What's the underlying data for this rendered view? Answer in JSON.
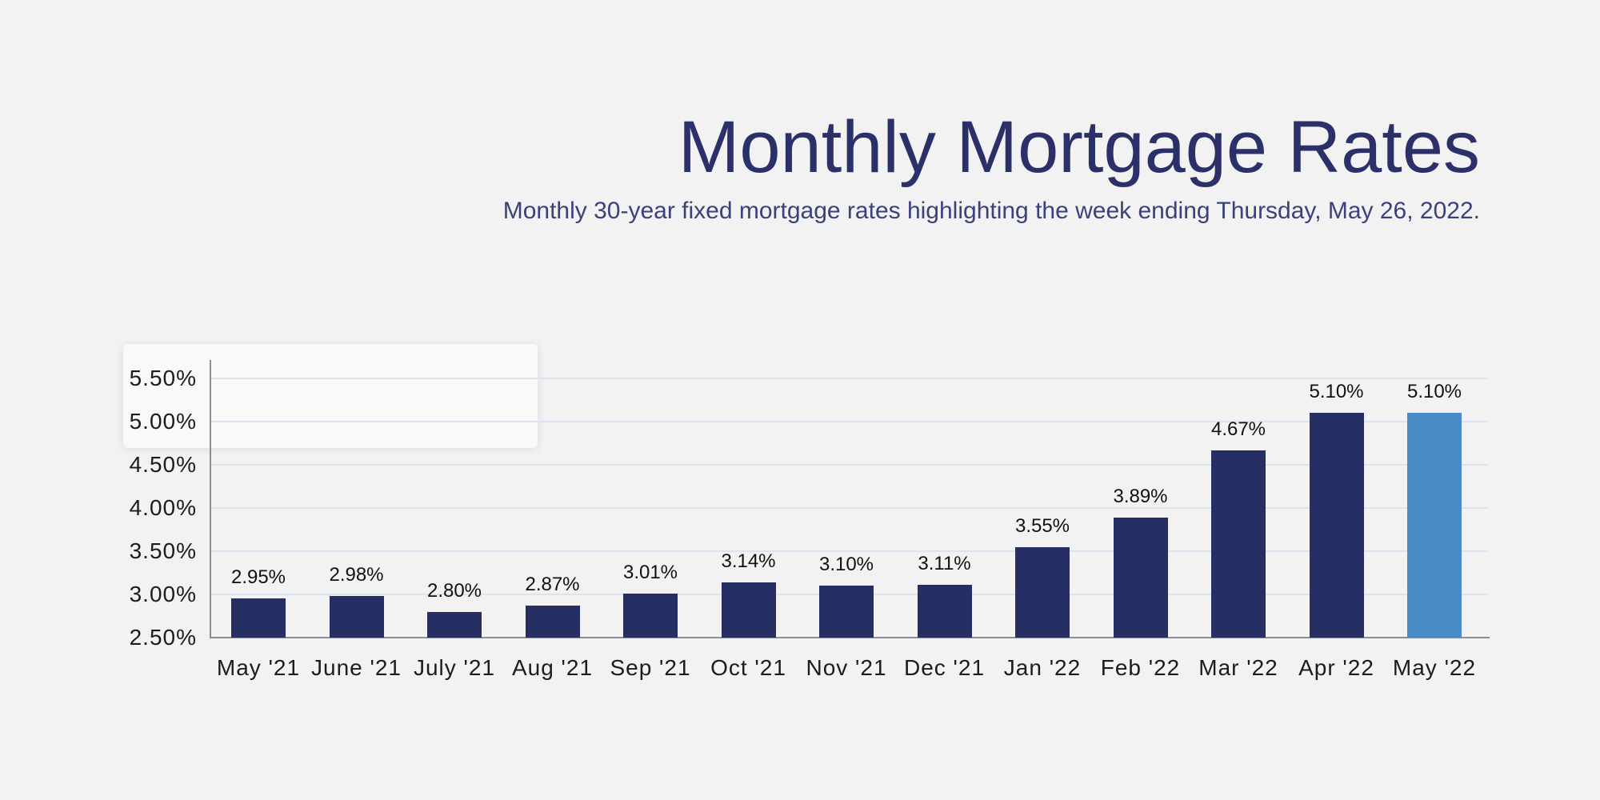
{
  "theme": {
    "background": "#f2f2f3",
    "title_color": "#2b3168",
    "subtitle_color": "#39427a"
  },
  "chart_data": {
    "type": "bar",
    "title": "Monthly Mortgage Rates",
    "subtitle": "Monthly 30-year fixed mortgage rates highlighting the week ending Thursday, May 26, 2022.",
    "xlabel": "",
    "ylabel": "",
    "categories": [
      "May '21",
      "June '21",
      "July '21",
      "Aug '21",
      "Sep '21",
      "Oct '21",
      "Nov '21",
      "Dec '21",
      "Jan '22",
      "Feb '22",
      "Mar '22",
      "Apr '22",
      "May '22"
    ],
    "values": [
      2.95,
      2.98,
      2.8,
      2.87,
      3.01,
      3.14,
      3.1,
      3.11,
      3.55,
      3.89,
      4.67,
      5.1,
      5.1
    ],
    "value_labels": [
      "2.95%",
      "2.98%",
      "2.80%",
      "2.87%",
      "3.01%",
      "3.14%",
      "3.10%",
      "3.11%",
      "3.55%",
      "3.89%",
      "4.67%",
      "5.10%",
      "5.10%"
    ],
    "yticks": [
      {
        "label": "5.50%",
        "value": 5.5
      },
      {
        "label": "5.00%",
        "value": 5.0
      },
      {
        "label": "4.50%",
        "value": 4.5
      },
      {
        "label": "4.00%",
        "value": 4.0
      },
      {
        "label": "3.50%",
        "value": 3.5
      },
      {
        "label": "3.00%",
        "value": 3.0
      },
      {
        "label": "2.50%",
        "value": 2.5
      }
    ],
    "ylim": [
      2.5,
      5.72
    ],
    "grid": "horizontal",
    "legend": "none",
    "highlight_index": 12,
    "highlight_meaning": "week ending Thursday, May 26, 2022",
    "colors": {
      "bar": "#262f63",
      "bar_highlight": "#4a8bc7",
      "gridline": "#dbe2f1",
      "axis": "#8e8e8e",
      "tick_text": "#1c1c1c",
      "value_text": "#111111"
    }
  }
}
